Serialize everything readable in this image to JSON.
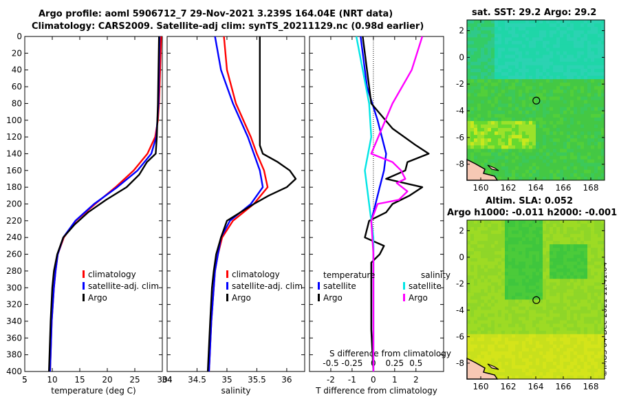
{
  "header": {
    "title_line1": "Argo profile: aoml 5906712_7 29-Nov-2021 3.239S 164.04E (NRT data)",
    "title_line2": "Climatology: CARS2009. Satellite-adj clim: synTS_20211129.nc (0.98d earlier)",
    "sst_title": "sat. SST: 29.2 Argo: 29.2",
    "sla_title_line1": "Altim. SLA: 0.052",
    "sla_title_line2": "Argo h1000: -0.011 h2000: -0.001",
    "timestamp": "©IMOS 04-Dec-2021 11:41:04"
  },
  "colors": {
    "climatology": "#ff0000",
    "satellite": "#0000ff",
    "argo": "#000000",
    "sal_satellite": "#00e5e5",
    "sal_argo": "#ff00ff"
  },
  "chart_data": [
    {
      "type": "line",
      "name": "temperature-profile",
      "xlabel": "temperature (deg C)",
      "ylabel": "",
      "xlim": [
        5,
        30
      ],
      "ylim": [
        400,
        0
      ],
      "xticks": [
        5,
        10,
        15,
        20,
        25,
        30
      ],
      "yticks": [
        0,
        20,
        40,
        60,
        80,
        100,
        120,
        140,
        160,
        180,
        200,
        220,
        240,
        260,
        280,
        300,
        320,
        340,
        360,
        380,
        400
      ],
      "legend": [
        "climatology",
        "satellite-adj. clim",
        "Argo"
      ],
      "series": [
        {
          "name": "climatology",
          "depth": [
            0,
            40,
            80,
            100,
            120,
            140,
            160,
            180,
            200,
            220,
            240,
            260,
            280,
            300,
            340,
            400
          ],
          "values": [
            29.8,
            29.6,
            29.4,
            29.2,
            28.7,
            27.3,
            24.8,
            21.5,
            17.8,
            14.3,
            12.1,
            11.0,
            10.6,
            10.3,
            9.9,
            9.6
          ]
        },
        {
          "name": "satellite-adj. clim",
          "depth": [
            0,
            40,
            80,
            100,
            120,
            140,
            160,
            180,
            200,
            220,
            240,
            260,
            280,
            300,
            340,
            400
          ],
          "values": [
            29.5,
            29.4,
            29.3,
            29.1,
            28.9,
            28.0,
            25.5,
            21.8,
            17.6,
            14.2,
            12.0,
            11.0,
            10.6,
            10.3,
            9.9,
            9.6
          ]
        },
        {
          "name": "Argo",
          "depth": [
            0,
            40,
            80,
            100,
            120,
            140,
            150,
            165,
            180,
            195,
            210,
            225,
            240,
            260,
            280,
            300,
            340,
            400
          ],
          "values": [
            29.4,
            29.3,
            29.2,
            29.1,
            29.0,
            28.8,
            27.2,
            25.8,
            23.5,
            19.8,
            16.5,
            14.0,
            12.0,
            10.9,
            10.3,
            10.0,
            9.7,
            9.4
          ]
        }
      ]
    },
    {
      "type": "line",
      "name": "salinity-profile",
      "xlabel": "salinity",
      "xlim": [
        34,
        36.3
      ],
      "ylim": [
        400,
        0
      ],
      "xticks": [
        34,
        34.5,
        35,
        35.5,
        36
      ],
      "legend": [
        "climatology",
        "satellite-adj. clim",
        "Argo"
      ],
      "series": [
        {
          "name": "climatology",
          "depth": [
            0,
            40,
            80,
            120,
            140,
            160,
            180,
            200,
            220,
            240,
            260,
            280,
            300,
            340,
            400
          ],
          "values": [
            34.95,
            35.0,
            35.15,
            35.4,
            35.5,
            35.62,
            35.68,
            35.45,
            35.1,
            34.92,
            34.85,
            34.8,
            34.78,
            34.74,
            34.7
          ]
        },
        {
          "name": "satellite-adj. clim",
          "depth": [
            0,
            40,
            80,
            120,
            140,
            160,
            180,
            200,
            220,
            240,
            260,
            280,
            300,
            340,
            400
          ],
          "values": [
            34.8,
            34.9,
            35.1,
            35.35,
            35.45,
            35.55,
            35.6,
            35.4,
            35.05,
            34.9,
            34.85,
            34.8,
            34.78,
            34.74,
            34.7
          ]
        },
        {
          "name": "Argo",
          "depth": [
            0,
            130,
            140,
            150,
            160,
            170,
            180,
            190,
            200,
            220,
            240,
            260,
            280,
            300,
            340,
            400
          ],
          "values": [
            35.55,
            35.55,
            35.6,
            35.85,
            36.05,
            36.15,
            36.0,
            35.7,
            35.45,
            35.0,
            34.9,
            34.82,
            34.78,
            34.75,
            34.72,
            34.68
          ]
        }
      ]
    },
    {
      "type": "line",
      "name": "difference-profile",
      "xlabel": "T difference from climatology",
      "x2label": "S difference from climatology",
      "xlim": [
        -3,
        3.3
      ],
      "ylim": [
        400,
        0
      ],
      "xticks": [
        -2,
        -1,
        0,
        1,
        2
      ],
      "x2ticks": [
        -0.5,
        -0.25,
        0,
        0.25,
        0.5
      ],
      "legend_temperature_title": "temperature",
      "legend_salinity_title": "salinity",
      "legend": [
        "satellite",
        "Argo"
      ],
      "series": [
        {
          "name": "T satellite",
          "depth": [
            0,
            20,
            60,
            100,
            140,
            160,
            180,
            200,
            220,
            250,
            300,
            400
          ],
          "values": [
            -0.6,
            -0.5,
            -0.3,
            0.2,
            0.6,
            0.5,
            0.3,
            0.1,
            -0.1,
            0.0,
            0.0,
            0.0
          ]
        },
        {
          "name": "T Argo",
          "depth": [
            0,
            40,
            80,
            110,
            130,
            140,
            150,
            160,
            170,
            180,
            190,
            200,
            210,
            220,
            240,
            250,
            260,
            270,
            300,
            350,
            400
          ],
          "values": [
            -0.5,
            -0.3,
            -0.1,
            0.9,
            2.0,
            2.6,
            1.6,
            1.5,
            0.6,
            2.3,
            1.7,
            0.9,
            0.6,
            -0.2,
            -0.4,
            0.5,
            0.3,
            -0.1,
            -0.1,
            -0.1,
            0.0
          ]
        },
        {
          "name": "S satellite",
          "depth": [
            0,
            40,
            80,
            120,
            160,
            200,
            240,
            300,
            400
          ],
          "values": [
            -0.8,
            -0.5,
            -0.2,
            -0.1,
            -0.4,
            -0.2,
            0.0,
            0.0,
            0.0
          ]
        },
        {
          "name": "S Argo",
          "depth": [
            0,
            40,
            80,
            110,
            140,
            150,
            160,
            170,
            175,
            185,
            195,
            200,
            220,
            260,
            300,
            400
          ],
          "values": [
            2.3,
            1.8,
            0.9,
            0.4,
            -0.1,
            0.9,
            1.3,
            1.5,
            1.1,
            1.6,
            1.2,
            0.2,
            -0.1,
            0.0,
            0.0,
            0.0
          ]
        }
      ]
    },
    {
      "type": "heatmap",
      "name": "sst-map",
      "xticks": [
        160,
        162,
        164,
        166,
        168
      ],
      "yticks": [
        2,
        0,
        -2,
        -4,
        -6,
        -8
      ],
      "xlim": [
        159,
        169
      ],
      "ylim": [
        -9.2,
        2.8
      ],
      "argo_position": [
        164.04,
        -3.239
      ]
    },
    {
      "type": "heatmap",
      "name": "sla-map",
      "xticks": [
        160,
        162,
        164,
        166,
        168
      ],
      "yticks": [
        2,
        0,
        -2,
        -4,
        -6,
        -8
      ],
      "xlim": [
        159,
        169
      ],
      "ylim": [
        -9.2,
        2.8
      ],
      "argo_position": [
        164.04,
        -3.239
      ]
    }
  ]
}
